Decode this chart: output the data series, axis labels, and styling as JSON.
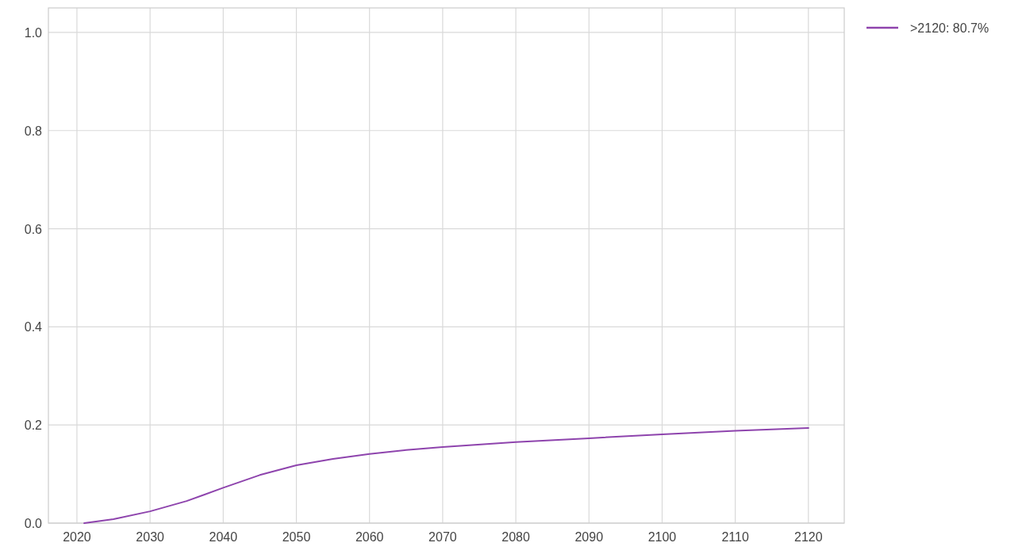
{
  "chart_data": {
    "type": "line",
    "x": [
      2021,
      2025,
      2030,
      2035,
      2040,
      2045,
      2050,
      2055,
      2060,
      2065,
      2070,
      2080,
      2090,
      2100,
      2110,
      2120
    ],
    "series": [
      {
        "name": ">2120: 80.7%",
        "color": "#8e44ad",
        "values": [
          0,
          0.008,
          0.024,
          0.045,
          0.072,
          0.098,
          0.118,
          0.131,
          0.141,
          0.149,
          0.155,
          0.165,
          0.173,
          0.181,
          0.188,
          0.194
        ]
      }
    ],
    "xlim": [
      2016.1,
      2124.9
    ],
    "xticks": [
      2020,
      2030,
      2040,
      2050,
      2060,
      2070,
      2080,
      2090,
      2100,
      2110,
      2120
    ],
    "ylim": [
      0,
      1.05
    ],
    "yticks": [
      {
        "value": 0,
        "label": "0.0"
      },
      {
        "value": 0.2,
        "label": "0.2"
      },
      {
        "value": 0.4,
        "label": "0.4"
      },
      {
        "value": 0.6,
        "label": "0.6"
      },
      {
        "value": 0.8,
        "label": "0.8"
      },
      {
        "value": 1,
        "label": "1.0"
      }
    ],
    "grid": true,
    "legend": "top right"
  }
}
